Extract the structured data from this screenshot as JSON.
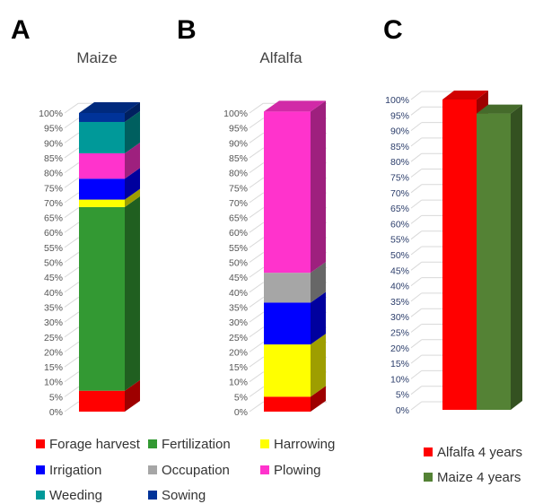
{
  "colors": {
    "Forage harvest": "#ff0000",
    "Fertilization": "#339933",
    "Harrowing": "#ffff00",
    "Irrigation": "#0000ff",
    "Occupation": "#a6a6a6",
    "Plowing": "#ff33cc",
    "Weeding": "#009999",
    "Sowing": "#003399",
    "Alfalfa 4 years": "#ff0000",
    "Maize 4 years": "#548235"
  },
  "chart_data": [
    {
      "panel": "A",
      "type": "bar",
      "stacked": true,
      "title": "Maize",
      "ylim": [
        0,
        100
      ],
      "yticks": [
        "0%",
        "5%",
        "10%",
        "15%",
        "20%",
        "25%",
        "30%",
        "35%",
        "40%",
        "45%",
        "50%",
        "55%",
        "60%",
        "65%",
        "70%",
        "75%",
        "80%",
        "85%",
        "90%",
        "95%",
        "100%"
      ],
      "series": [
        {
          "name": "Forage harvest",
          "values": [
            7
          ]
        },
        {
          "name": "Fertilization",
          "values": [
            61.5
          ]
        },
        {
          "name": "Harrowing",
          "values": [
            2.5
          ]
        },
        {
          "name": "Irrigation",
          "values": [
            7
          ]
        },
        {
          "name": "Plowing",
          "values": [
            8.5
          ]
        },
        {
          "name": "Weeding",
          "values": [
            10.5
          ]
        },
        {
          "name": "Sowing",
          "values": [
            3
          ]
        }
      ]
    },
    {
      "panel": "B",
      "type": "bar",
      "stacked": true,
      "title": "Alfalfa",
      "ylim": [
        0,
        100
      ],
      "yticks": [
        "0%",
        "5%",
        "10%",
        "15%",
        "20%",
        "25%",
        "30%",
        "35%",
        "40%",
        "45%",
        "50%",
        "55%",
        "60%",
        "65%",
        "70%",
        "75%",
        "80%",
        "85%",
        "90%",
        "95%",
        "100%"
      ],
      "series": [
        {
          "name": "Forage harvest",
          "values": [
            5
          ]
        },
        {
          "name": "Harrowing",
          "values": [
            17.5
          ]
        },
        {
          "name": "Irrigation",
          "values": [
            14
          ]
        },
        {
          "name": "Occupation",
          "values": [
            10
          ]
        },
        {
          "name": "Plowing",
          "values": [
            54
          ]
        }
      ]
    },
    {
      "panel": "C",
      "type": "bar",
      "title": "",
      "ylim": [
        0,
        100
      ],
      "yticks": [
        "0%",
        "5%",
        "10%",
        "15%",
        "20%",
        "25%",
        "30%",
        "35%",
        "40%",
        "45%",
        "50%",
        "55%",
        "60%",
        "65%",
        "70%",
        "75%",
        "80%",
        "85%",
        "90%",
        "95%",
        "100%"
      ],
      "series": [
        {
          "name": "Alfalfa 4 years",
          "values": [
            100
          ]
        },
        {
          "name": "Maize 4 years",
          "values": [
            95.5
          ]
        }
      ]
    }
  ],
  "legend_left": [
    "Forage harvest",
    "Fertilization",
    "Harrowing",
    "Irrigation",
    "Occupation",
    "Plowing",
    "Weeding",
    "Sowing"
  ],
  "legend_right": [
    "Alfalfa 4 years",
    "Maize 4 years"
  ]
}
